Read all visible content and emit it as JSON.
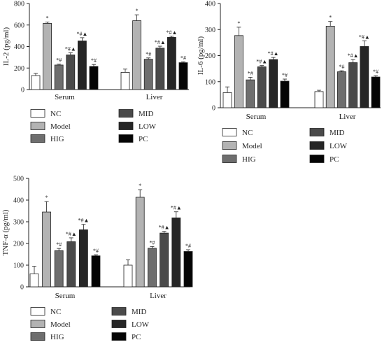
{
  "sig_marks": {
    "model": "*",
    "treated": "*#",
    "treated_triangle": "*#▲"
  },
  "legend_labels": [
    "NC",
    "Model",
    "HIG",
    "MID",
    "LOW",
    "PC"
  ],
  "chart_data": [
    {
      "type": "bar",
      "ylabel": "IL-2 (pg/ml)",
      "ylim": [
        0,
        800
      ],
      "yticks": [
        0,
        200,
        400,
        600,
        800
      ],
      "categories": [
        "Serum",
        "Liver"
      ],
      "series": [
        {
          "name": "NC",
          "color": "#ffffff",
          "values": [
            130,
            160
          ],
          "errors": [
            20,
            30
          ],
          "sig": [
            "",
            ""
          ]
        },
        {
          "name": "Model",
          "color": "#b3b3b3",
          "values": [
            615,
            640
          ],
          "errors": [
            12,
            55
          ],
          "sig": [
            "model",
            "model"
          ]
        },
        {
          "name": "HIG",
          "color": "#6e6e6e",
          "values": [
            228,
            282
          ],
          "errors": [
            8,
            12
          ],
          "sig": [
            "treated",
            "treated"
          ]
        },
        {
          "name": "MID",
          "color": "#4a4a4a",
          "values": [
            322,
            385
          ],
          "errors": [
            20,
            18
          ],
          "sig": [
            "treated_triangle",
            "treated_triangle"
          ]
        },
        {
          "name": "LOW",
          "color": "#262626",
          "values": [
            452,
            485
          ],
          "errors": [
            30,
            10
          ],
          "sig": [
            "treated_triangle",
            "treated_triangle"
          ]
        },
        {
          "name": "PC",
          "color": "#050505",
          "values": [
            215,
            250
          ],
          "errors": [
            18,
            8
          ],
          "sig": [
            "treated",
            "treated"
          ]
        }
      ]
    },
    {
      "type": "bar",
      "ylabel": "IL-6 (pg/ml)",
      "ylim": [
        0,
        400
      ],
      "yticks": [
        0,
        100,
        200,
        300,
        400
      ],
      "categories": [
        "Serum",
        "Liver"
      ],
      "series": [
        {
          "name": "NC",
          "color": "#ffffff",
          "values": [
            58,
            62
          ],
          "errors": [
            22,
            5
          ],
          "sig": [
            "",
            ""
          ]
        },
        {
          "name": "Model",
          "color": "#b3b3b3",
          "values": [
            277,
            313
          ],
          "errors": [
            32,
            18
          ],
          "sig": [
            "model",
            "model"
          ]
        },
        {
          "name": "HIG",
          "color": "#6e6e6e",
          "values": [
            107,
            138
          ],
          "errors": [
            10,
            4
          ],
          "sig": [
            "treated",
            "treated"
          ]
        },
        {
          "name": "MID",
          "color": "#4a4a4a",
          "values": [
            157,
            173
          ],
          "errors": [
            5,
            12
          ],
          "sig": [
            "treated_triangle",
            "treated_triangle"
          ]
        },
        {
          "name": "LOW",
          "color": "#262626",
          "values": [
            185,
            235
          ],
          "errors": [
            8,
            22
          ],
          "sig": [
            "treated_triangle",
            "treated_triangle"
          ]
        },
        {
          "name": "PC",
          "color": "#050505",
          "values": [
            102,
            118
          ],
          "errors": [
            8,
            5
          ],
          "sig": [
            "treated",
            "treated"
          ]
        }
      ]
    },
    {
      "type": "bar",
      "ylabel": "TNF-α (pg/ml)",
      "ylim": [
        0,
        500
      ],
      "yticks": [
        0,
        100,
        200,
        300,
        400,
        500
      ],
      "categories": [
        "Serum",
        "Liver"
      ],
      "series": [
        {
          "name": "NC",
          "color": "#ffffff",
          "values": [
            60,
            100
          ],
          "errors": [
            35,
            25
          ],
          "sig": [
            "",
            ""
          ]
        },
        {
          "name": "Model",
          "color": "#b3b3b3",
          "values": [
            345,
            413
          ],
          "errors": [
            48,
            35
          ],
          "sig": [
            "model",
            "model"
          ]
        },
        {
          "name": "HIG",
          "color": "#6e6e6e",
          "values": [
            167,
            178
          ],
          "errors": [
            10,
            8
          ],
          "sig": [
            "treated",
            "treated"
          ]
        },
        {
          "name": "MID",
          "color": "#4a4a4a",
          "values": [
            208,
            248
          ],
          "errors": [
            18,
            8
          ],
          "sig": [
            "treated_triangle",
            "treated_triangle"
          ]
        },
        {
          "name": "LOW",
          "color": "#262626",
          "values": [
            263,
            318
          ],
          "errors": [
            25,
            28
          ],
          "sig": [
            "treated_triangle",
            "treated_triangle"
          ]
        },
        {
          "name": "PC",
          "color": "#050505",
          "values": [
            143,
            163
          ],
          "errors": [
            5,
            8
          ],
          "sig": [
            "treated",
            "treated"
          ]
        }
      ]
    }
  ]
}
